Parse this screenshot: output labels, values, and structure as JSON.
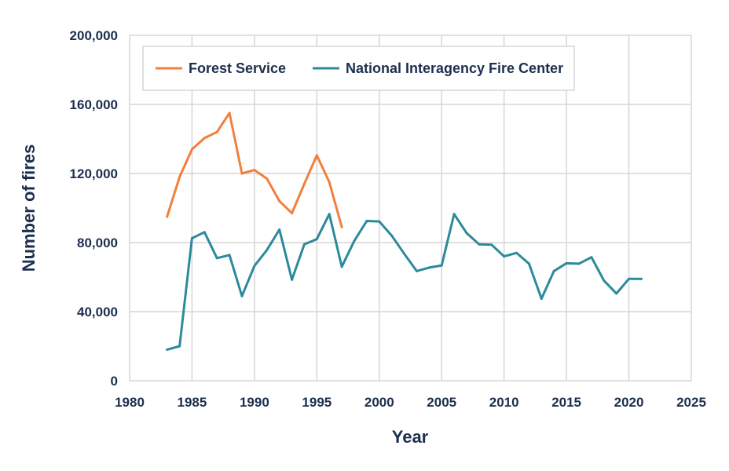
{
  "chart_data": {
    "type": "line",
    "xlabel": "Year",
    "ylabel": "Number of fires",
    "xlim": [
      1980,
      2025
    ],
    "ylim": [
      0,
      200000
    ],
    "x_ticks": [
      1980,
      1985,
      1990,
      1995,
      2000,
      2005,
      2010,
      2015,
      2020,
      2025
    ],
    "y_ticks": [
      0,
      40000,
      80000,
      120000,
      160000,
      200000
    ],
    "x_tick_labels": [
      "1980",
      "1985",
      "1990",
      "1995",
      "2000",
      "2005",
      "2010",
      "2015",
      "2020",
      "2025"
    ],
    "y_tick_labels": [
      "0",
      "40,000",
      "80,000",
      "120,000",
      "160,000",
      "200,000"
    ],
    "grid": true,
    "legend_position": "top-left",
    "series": [
      {
        "name": "Forest Service",
        "color": "#f0803c",
        "x": [
          1983,
          1984,
          1985,
          1986,
          1987,
          1988,
          1989,
          1990,
          1991,
          1992,
          1993,
          1994,
          1995,
          1996,
          1997
        ],
        "values": [
          95000,
          118000,
          134000,
          140500,
          144000,
          155000,
          120000,
          122000,
          117000,
          104000,
          97000,
          114000,
          130500,
          115000,
          89000
        ]
      },
      {
        "name": "National Interagency Fire Center",
        "color": "#2b8a9b",
        "x": [
          1983,
          1984,
          1985,
          1986,
          1987,
          1988,
          1989,
          1990,
          1991,
          1992,
          1993,
          1994,
          1995,
          1996,
          1997,
          1998,
          1999,
          2000,
          2001,
          2002,
          2003,
          2004,
          2005,
          2006,
          2007,
          2008,
          2009,
          2010,
          2011,
          2012,
          2013,
          2014,
          2015,
          2016,
          2017,
          2018,
          2019,
          2020,
          2021
        ],
        "values": [
          18000,
          20000,
          82500,
          86000,
          71000,
          72750,
          49000,
          66500,
          75750,
          87500,
          58500,
          79000,
          82000,
          96500,
          66000,
          81000,
          92500,
          92250,
          84000,
          73500,
          63500,
          65500,
          66750,
          96500,
          85500,
          79000,
          78750,
          72000,
          74000,
          67750,
          47500,
          63500,
          68000,
          67750,
          71500,
          58000,
          50500,
          59000,
          59000
        ]
      }
    ]
  }
}
